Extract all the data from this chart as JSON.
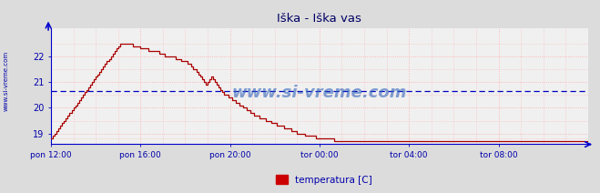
{
  "title": "Iška - Iška vas",
  "title_color": "#000066",
  "bg_color": "#dcdcdc",
  "plot_bg_color": "#f0f0f0",
  "line_color": "#aa0000",
  "hline_color": "#0000bb",
  "hline_y": 20.65,
  "grid_color": "#ffaaaa",
  "axis_color": "#0000cc",
  "tick_color": "#0000aa",
  "watermark": "www.si-vreme.com",
  "watermark_color": "#3366bb",
  "legend_label": "temperatura [C]",
  "legend_color": "#cc0000",
  "ylim": [
    18.6,
    23.1
  ],
  "yticks": [
    19,
    20,
    21,
    22
  ],
  "xtick_labels": [
    "pon 12:00",
    "pon 16:00",
    "pon 20:00",
    "tor 00:00",
    "tor 04:00",
    "tor 08:00"
  ],
  "temp_data": [
    18.8,
    18.9,
    19.0,
    19.1,
    19.2,
    19.3,
    19.4,
    19.5,
    19.6,
    19.7,
    19.8,
    19.9,
    20.0,
    20.1,
    20.2,
    20.3,
    20.4,
    20.5,
    20.6,
    20.7,
    20.8,
    20.9,
    21.0,
    21.1,
    21.2,
    21.3,
    21.4,
    21.5,
    21.6,
    21.7,
    21.8,
    21.9,
    22.0,
    22.1,
    22.2,
    22.3,
    22.4,
    22.5,
    22.5,
    22.5,
    22.5,
    22.5,
    22.5,
    22.5,
    22.4,
    22.4,
    22.4,
    22.4,
    22.3,
    22.3,
    22.3,
    22.3,
    22.2,
    22.2,
    22.2,
    22.2,
    22.2,
    22.2,
    22.1,
    22.1,
    22.1,
    22.0,
    22.0,
    22.0,
    22.0,
    22.0,
    22.0,
    21.9,
    21.9,
    21.9,
    21.8,
    21.8,
    21.8,
    21.7,
    21.7,
    21.6,
    21.5,
    21.5,
    21.4,
    21.3,
    21.2,
    21.1,
    21.0,
    20.9,
    21.0,
    21.1,
    21.2,
    21.1,
    21.0,
    20.9,
    20.8,
    20.7,
    20.6,
    20.5,
    20.5,
    20.4,
    20.4,
    20.3,
    20.3,
    20.2,
    20.2,
    20.1,
    20.1,
    20.0,
    20.0,
    19.9,
    19.9,
    19.8,
    19.8,
    19.7,
    19.7,
    19.7,
    19.6,
    19.6,
    19.6,
    19.5,
    19.5,
    19.5,
    19.4,
    19.4,
    19.4,
    19.3,
    19.3,
    19.3,
    19.3,
    19.2,
    19.2,
    19.2,
    19.2,
    19.1,
    19.1,
    19.1,
    19.0,
    19.0,
    19.0,
    19.0,
    18.9,
    18.9,
    18.9,
    18.9,
    18.9,
    18.9,
    18.8,
    18.8,
    18.8,
    18.8,
    18.8,
    18.8,
    18.8,
    18.8,
    18.8,
    18.8,
    18.7,
    18.7,
    18.7,
    18.7,
    18.7,
    18.7,
    18.7,
    18.7,
    18.7,
    18.7,
    18.7,
    18.7,
    18.7,
    18.7,
    18.7,
    18.7,
    18.7,
    18.7,
    18.7,
    18.7,
    18.7,
    18.7,
    18.7,
    18.7,
    18.7,
    18.7,
    18.7,
    18.7,
    18.7,
    18.7,
    18.7,
    18.7,
    18.7,
    18.7,
    18.7,
    18.7,
    18.7,
    18.7,
    18.7,
    18.7,
    18.7,
    18.7,
    18.7,
    18.7,
    18.7,
    18.7,
    18.7,
    18.7,
    18.7,
    18.7,
    18.7,
    18.7,
    18.7,
    18.7,
    18.7,
    18.7,
    18.7,
    18.7,
    18.7,
    18.7,
    18.7,
    18.7,
    18.7,
    18.7,
    18.7,
    18.7,
    18.7,
    18.7,
    18.7,
    18.7,
    18.7,
    18.7,
    18.7,
    18.7,
    18.7,
    18.7,
    18.7,
    18.7,
    18.7,
    18.7,
    18.7,
    18.7,
    18.7,
    18.7,
    18.7,
    18.7,
    18.7,
    18.7,
    18.7,
    18.7,
    18.7,
    18.7,
    18.7,
    18.7,
    18.7,
    18.7,
    18.7,
    18.7,
    18.7,
    18.7,
    18.7,
    18.7,
    18.7,
    18.7,
    18.7,
    18.7,
    18.7,
    18.7,
    18.7,
    18.7,
    18.7,
    18.7,
    18.7,
    18.7,
    18.7,
    18.7,
    18.7,
    18.7,
    18.7,
    18.7,
    18.7,
    18.7,
    18.7,
    18.7,
    18.7,
    18.7,
    18.7,
    18.7,
    18.7,
    18.7,
    18.7,
    18.7,
    18.7,
    18.7,
    18.7,
    18.7,
    18.7
  ]
}
